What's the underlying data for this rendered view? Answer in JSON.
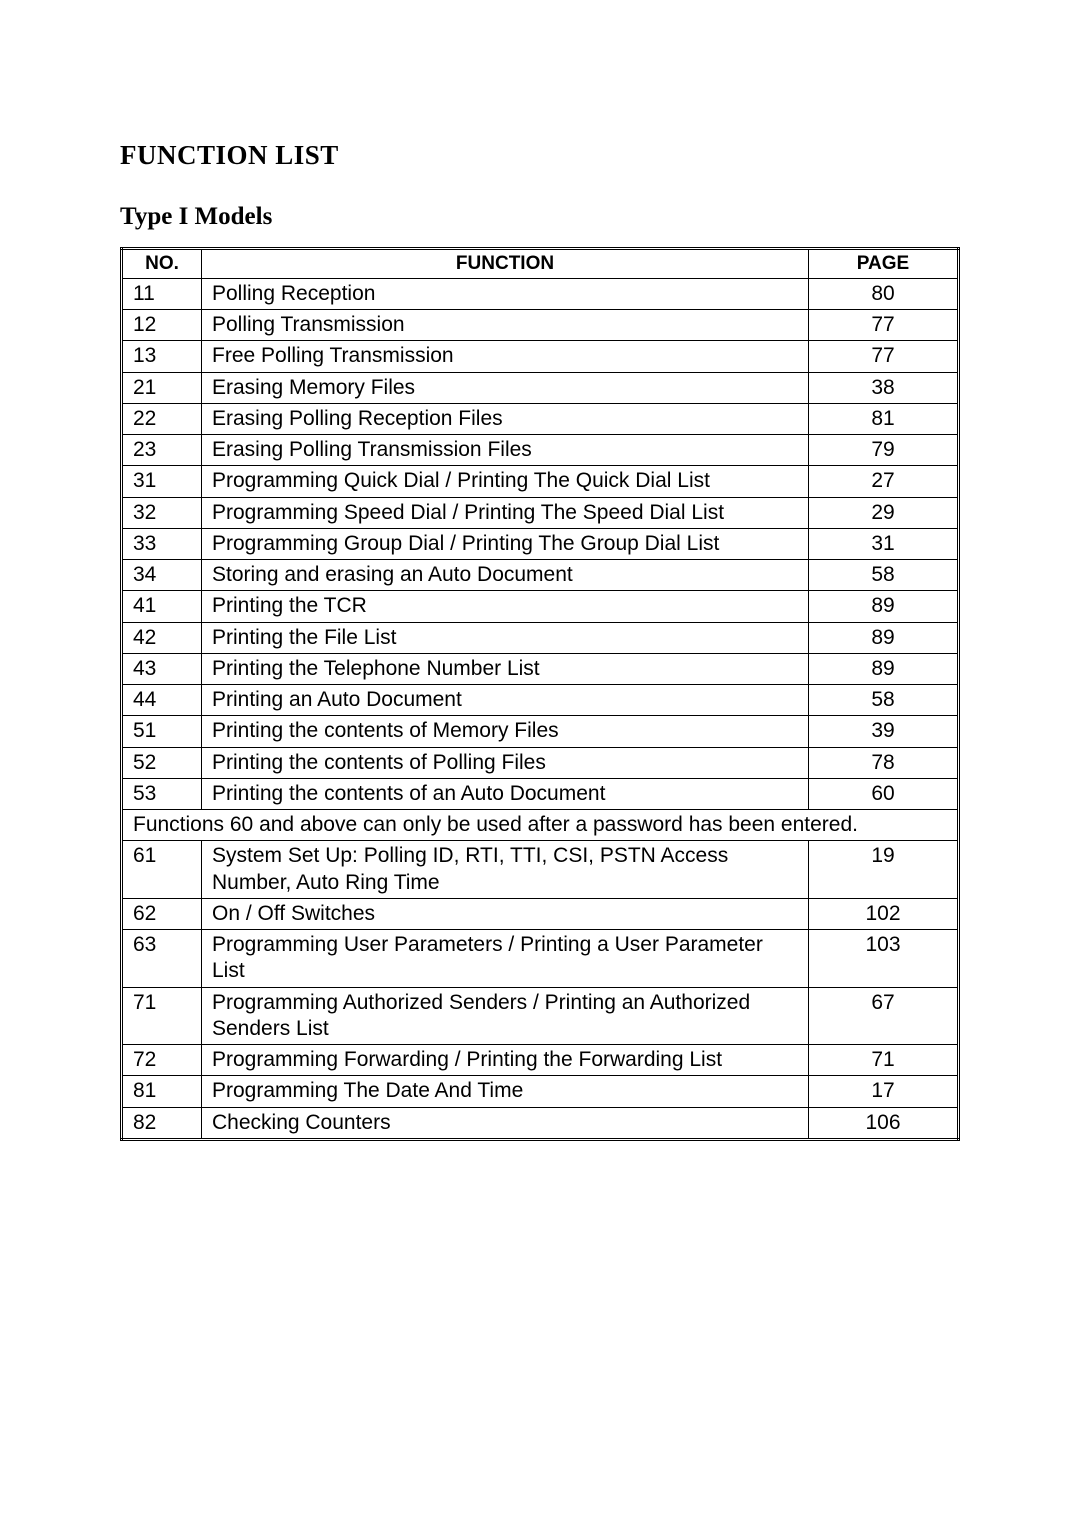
{
  "heading": "FUNCTION LIST",
  "subheading": "Type I Models",
  "table": {
    "headers": {
      "no": "NO.",
      "function": "FUNCTION",
      "page": "PAGE"
    },
    "note": "Functions 60 and above can only be used after a password has been entered.",
    "rows": [
      {
        "no": "11",
        "fn": "Polling Reception",
        "page": "80"
      },
      {
        "no": "12",
        "fn": "Polling Transmission",
        "page": "77"
      },
      {
        "no": "13",
        "fn": "Free Polling Transmission",
        "page": "77"
      },
      {
        "no": "21",
        "fn": "Erasing Memory Files",
        "page": "38"
      },
      {
        "no": "22",
        "fn": "Erasing Polling Reception Files",
        "page": "81"
      },
      {
        "no": "23",
        "fn": "Erasing Polling Transmission Files",
        "page": "79"
      },
      {
        "no": "31",
        "fn": "Programming Quick Dial / Printing The Quick Dial List",
        "page": "27"
      },
      {
        "no": "32",
        "fn": "Programming Speed Dial / Printing The Speed Dial List",
        "page": "29"
      },
      {
        "no": "33",
        "fn": "Programming Group Dial / Printing The Group Dial List",
        "page": "31"
      },
      {
        "no": "34",
        "fn": "Storing and erasing an Auto Document",
        "page": "58"
      },
      {
        "no": "41",
        "fn": "Printing the TCR",
        "page": "89"
      },
      {
        "no": "42",
        "fn": "Printing the File List",
        "page": "89"
      },
      {
        "no": "43",
        "fn": "Printing the Telephone Number List",
        "page": "89"
      },
      {
        "no": "44",
        "fn": "Printing an Auto Document",
        "page": "58"
      },
      {
        "no": "51",
        "fn": "Printing the contents of Memory Files",
        "page": "39"
      },
      {
        "no": "52",
        "fn": "Printing the contents of Polling Files",
        "page": "78"
      },
      {
        "no": "53",
        "fn": "Printing the contents of an Auto Document",
        "page": "60"
      },
      {
        "span": true
      },
      {
        "no": "61",
        "fn": "System Set Up: Polling ID, RTI, TTI, CSI, PSTN Access Number, Auto Ring Time",
        "page": "19"
      },
      {
        "no": "62",
        "fn": "On / Off Switches",
        "page": "102"
      },
      {
        "no": "63",
        "fn": "Programming User Parameters / Printing a User Parameter List",
        "page": "103"
      },
      {
        "no": "71",
        "fn": "Programming Authorized Senders / Printing an Authorized Senders List",
        "page": "67"
      },
      {
        "no": "72",
        "fn": "Programming Forwarding / Printing the Forwarding List",
        "page": "71"
      },
      {
        "no": "81",
        "fn": "Programming The Date And Time",
        "page": "17"
      },
      {
        "no": "82",
        "fn": "Checking Counters",
        "page": "106"
      }
    ]
  }
}
